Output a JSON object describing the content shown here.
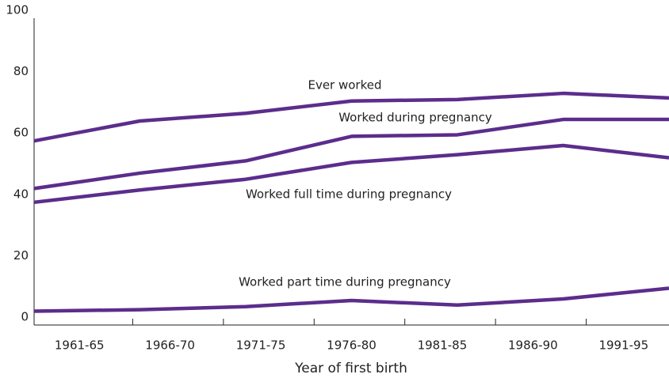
{
  "chart_data": {
    "type": "line",
    "x_label": "Year of first birth",
    "categories": [
      "1961-65",
      "1966-70",
      "1971-75",
      "1976-80",
      "1981-85",
      "1986-90",
      "1991-95"
    ],
    "series": [
      {
        "name": "Ever worked",
        "color": "#5b2d8c",
        "values": [
          60,
          66.5,
          69,
          73,
          73.5,
          75.5,
          74
        ]
      },
      {
        "name": "Worked during pregnancy",
        "color": "#5b2d8c",
        "values": [
          44.5,
          49.5,
          53.5,
          61.5,
          62,
          67,
          67
        ]
      },
      {
        "name": "Worked full time during pregnancy",
        "color": "#5b2d8c",
        "values": [
          40,
          44,
          47.5,
          53,
          55.5,
          58.5,
          54.5
        ]
      },
      {
        "name": "Worked part time during pregnancy",
        "color": "#5b2d8c",
        "values": [
          4.5,
          5,
          6,
          8,
          6.5,
          8.5,
          12
        ]
      }
    ],
    "ylim": [
      0,
      100
    ],
    "yticks": [
      0,
      20,
      40,
      60,
      80,
      100
    ],
    "grid": false
  }
}
